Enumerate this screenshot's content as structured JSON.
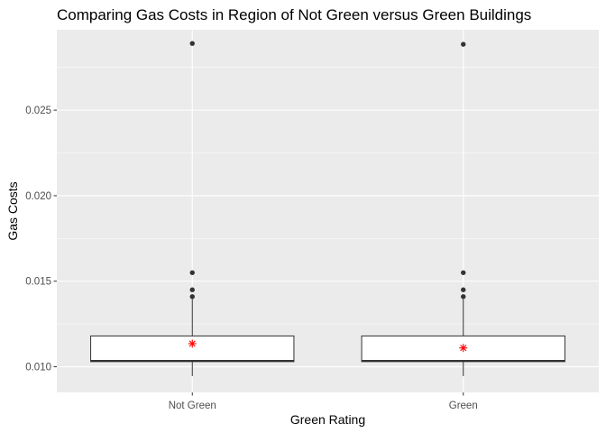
{
  "chart_data": {
    "type": "boxplot",
    "title": "Comparing Gas Costs in Region of Not Green versus Green Buildings",
    "xlabel": "Green Rating",
    "ylabel": "Gas Costs",
    "categories": [
      "Not Green",
      "Green"
    ],
    "ylim": [
      0.0085,
      0.0297
    ],
    "yticks": [
      0.01,
      0.015,
      0.02,
      0.025
    ],
    "ytick_labels": [
      "0.010",
      "0.015",
      "0.020",
      "0.025"
    ],
    "grid": true,
    "boxes": [
      {
        "category": "Not Green",
        "whisker_low": 0.00945,
        "q1": 0.0103,
        "median": 0.01035,
        "q3": 0.0118,
        "whisker_high": 0.01395,
        "mean": 0.01135,
        "outliers": [
          0.0141,
          0.0145,
          0.0155,
          0.0289
        ]
      },
      {
        "category": "Green",
        "whisker_low": 0.00945,
        "q1": 0.0103,
        "median": 0.01035,
        "q3": 0.0118,
        "whisker_high": 0.01395,
        "mean": 0.0111,
        "outliers": [
          0.0141,
          0.0145,
          0.0155,
          0.02885
        ]
      }
    ],
    "colors": {
      "panel": "#ebebeb",
      "grid_major": "#ffffff",
      "box_fill": "#ffffff",
      "box_line": "#333333",
      "outlier": "#333333",
      "mean_marker": "#ff0000"
    }
  }
}
